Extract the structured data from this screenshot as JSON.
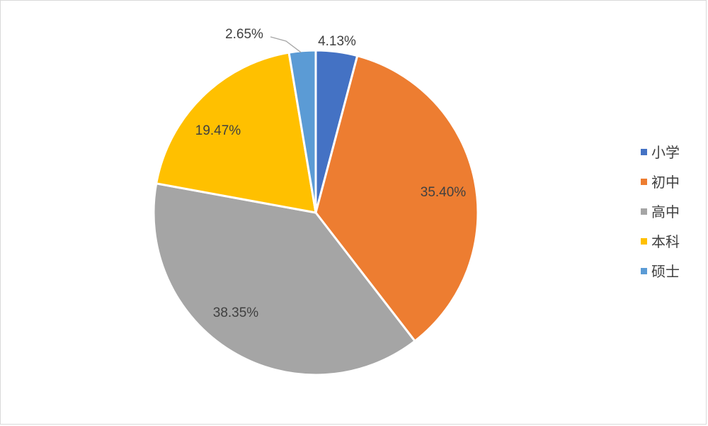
{
  "colors": {
    "小学": "#4472c4",
    "初中": "#ed7d31",
    "高中": "#a5a5a5",
    "本科": "#ffc000",
    "硕士": "#5b9bd5"
  },
  "chart_data": {
    "type": "pie",
    "title": "",
    "legend_position": "right",
    "categories": [
      "小学",
      "初中",
      "高中",
      "本科",
      "硕士"
    ],
    "values": [
      4.13,
      35.4,
      38.35,
      19.47,
      2.65
    ],
    "labels": [
      "4.13%",
      "35.40%",
      "38.35%",
      "19.47%",
      "2.65%"
    ],
    "start_angle": "12 o'clock",
    "direction": "clockwise"
  }
}
